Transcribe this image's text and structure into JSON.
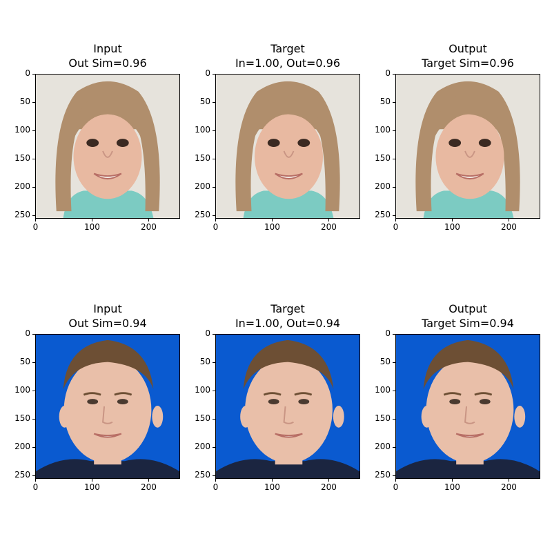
{
  "rows": [
    {
      "subject": "child-face",
      "panels": [
        {
          "role": "input",
          "title_line1": "Input",
          "title_line2": "Out Sim=0.96"
        },
        {
          "role": "target",
          "title_line1": "Target",
          "title_line2": "In=1.00, Out=0.96"
        },
        {
          "role": "output",
          "title_line1": "Output",
          "title_line2": "Target Sim=0.96"
        }
      ],
      "background": "#e6e3dc",
      "hair": "#b08e6c",
      "skin": "#e8b9a1",
      "shirt": "#7ccbc2"
    },
    {
      "subject": "young-man-face",
      "panels": [
        {
          "role": "input",
          "title_line1": "Input",
          "title_line2": "Out Sim=0.94"
        },
        {
          "role": "target",
          "title_line1": "Target",
          "title_line2": "In=1.00, Out=0.94"
        },
        {
          "role": "output",
          "title_line1": "Output",
          "title_line2": "Target Sim=0.94"
        }
      ],
      "background": "#0a5ad0",
      "hair": "#6d4f34",
      "skin": "#e9bfa9",
      "shirt": "#1b2540"
    }
  ],
  "y_ticks": [
    "0",
    "50",
    "100",
    "150",
    "200",
    "250"
  ],
  "x_ticks": [
    "0",
    "100",
    "200"
  ]
}
